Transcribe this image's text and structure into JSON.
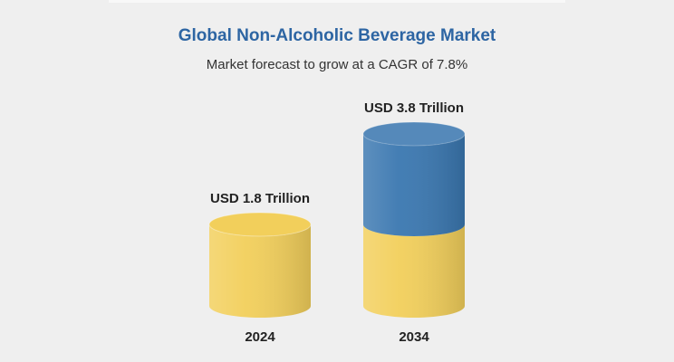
{
  "chart_data": {
    "type": "cylinder",
    "title": "Global Non-Alcoholic Beverage Market",
    "subtitle": "Market forecast to grow at a CAGR of 7.8%",
    "categories": [
      "2024",
      "2034"
    ],
    "values": [
      1.8,
      3.8
    ],
    "value_labels": [
      "USD 1.8 Trillion",
      "USD 3.8 Trillion"
    ],
    "color": "#f2cf5b",
    "growth_color": "#3a77b0"
  }
}
